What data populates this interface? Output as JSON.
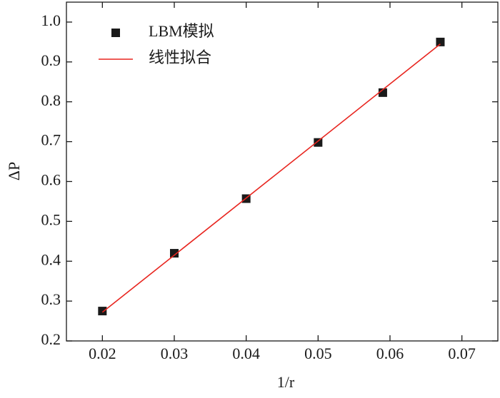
{
  "chart_data": {
    "type": "scatter",
    "x_label": "1/r",
    "y_label": "ΔP",
    "series": [
      {
        "name": "LBM模拟",
        "type": "scatter",
        "color": "#1a1a1a",
        "marker": "square",
        "x": [
          0.02,
          0.03,
          0.04,
          0.05,
          0.059,
          0.067
        ],
        "values": [
          0.275,
          0.42,
          0.557,
          0.698,
          0.823,
          0.95
        ]
      },
      {
        "name": "线性拟合",
        "type": "line",
        "color": "#e8251f",
        "x": [
          0.02,
          0.067
        ],
        "values": [
          0.272,
          0.945
        ]
      }
    ],
    "xlim": [
      0.015,
      0.075
    ],
    "ylim": [
      0.2,
      1.05
    ],
    "xticks": [
      0.02,
      0.03,
      0.04,
      0.05,
      0.06,
      0.07
    ],
    "yticks": [
      0.2,
      0.3,
      0.4,
      0.5,
      0.6,
      0.7,
      0.8,
      0.9,
      {
        "value": 1,
        "label": "1.0"
      }
    ],
    "legend": "upper left"
  }
}
